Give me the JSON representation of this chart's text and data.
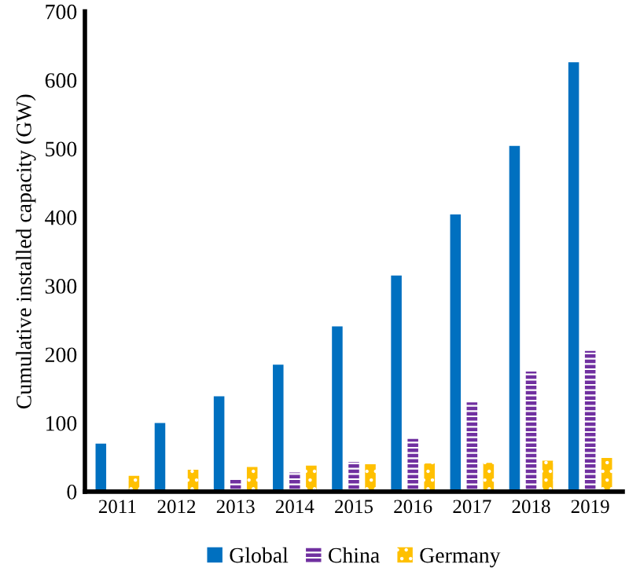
{
  "chart_data": {
    "type": "bar",
    "ylabel": "Cumulative installed capacity (GW)",
    "categories": [
      "2011",
      "2012",
      "2013",
      "2014",
      "2015",
      "2016",
      "2017",
      "2018",
      "2019"
    ],
    "series": [
      {
        "name": "Global",
        "color": "#0070c0",
        "values": [
          70,
          100,
          139,
          185,
          241,
          315,
          404,
          504,
          626
        ]
      },
      {
        "name": "China",
        "color": "#7030a0",
        "values": [
          null,
          null,
          17,
          28,
          43,
          77,
          130,
          175,
          205
        ]
      },
      {
        "name": "Germany",
        "color": "#ffc000",
        "values": [
          23,
          32,
          36,
          38,
          40,
          41,
          42,
          45,
          49
        ]
      }
    ],
    "ylim": [
      0,
      700
    ],
    "yticks": [
      0,
      100,
      200,
      300,
      400,
      500,
      600,
      700
    ],
    "grid": false,
    "legend": "bottom"
  }
}
